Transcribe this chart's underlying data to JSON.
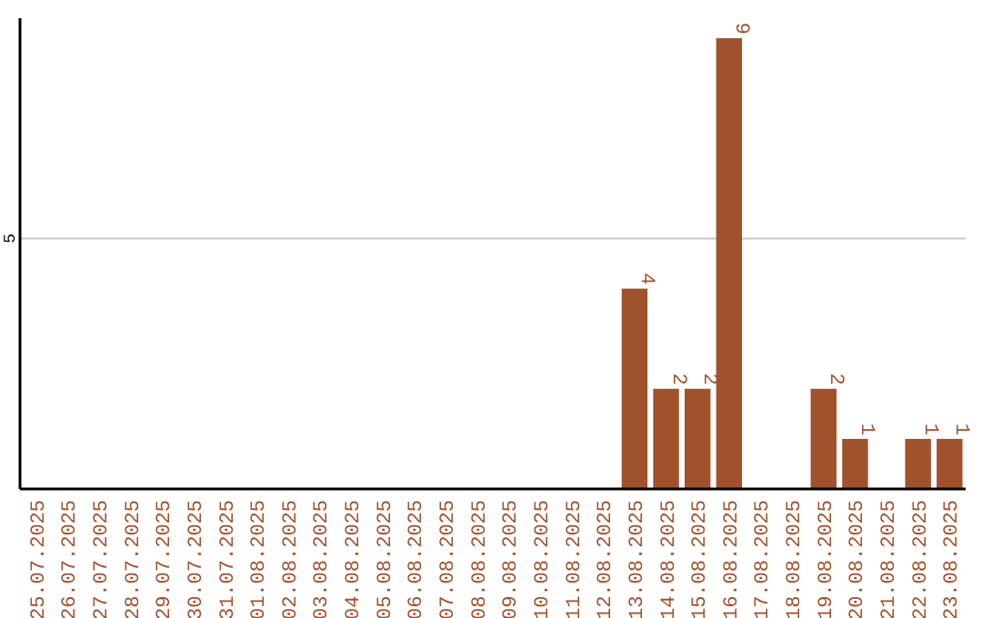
{
  "chart_data": {
    "type": "bar",
    "categories": [
      "25.07.2025",
      "26.07.2025",
      "27.07.2025",
      "28.07.2025",
      "29.07.2025",
      "30.07.2025",
      "31.07.2025",
      "01.08.2025",
      "02.08.2025",
      "03.08.2025",
      "04.08.2025",
      "05.08.2025",
      "06.08.2025",
      "07.08.2025",
      "08.08.2025",
      "09.08.2025",
      "10.08.2025",
      "11.08.2025",
      "12.08.2025",
      "13.08.2025",
      "14.08.2025",
      "15.08.2025",
      "16.08.2025",
      "17.08.2025",
      "18.08.2025",
      "19.08.2025",
      "20.08.2025",
      "21.08.2025",
      "22.08.2025",
      "23.08.2025"
    ],
    "values": [
      null,
      null,
      null,
      null,
      null,
      null,
      null,
      null,
      null,
      null,
      null,
      null,
      null,
      null,
      null,
      null,
      null,
      null,
      null,
      4,
      2,
      2,
      9,
      null,
      null,
      2,
      1,
      null,
      1,
      1
    ],
    "data_labels": true,
    "color": "#a0522d",
    "ylim": [
      0,
      9.4
    ],
    "yticks": [
      {
        "value": 0,
        "label": null
      },
      5
    ],
    "grid": "y"
  }
}
